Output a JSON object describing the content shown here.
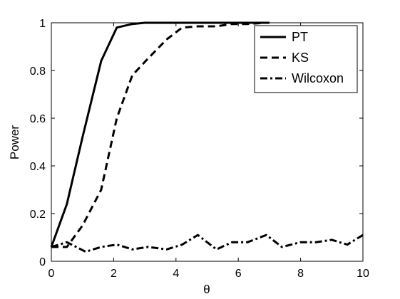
{
  "chart_data": {
    "type": "line",
    "xlabel": "θ",
    "ylabel": "Power",
    "xlim": [
      0,
      10
    ],
    "ylim": [
      0,
      1
    ],
    "xticks": [
      "0",
      "2",
      "4",
      "6",
      "8",
      "10"
    ],
    "yticks": [
      "0",
      "0.2",
      "0.4",
      "0.6",
      "0.8",
      "1"
    ],
    "grid": false,
    "legend_position": "top-right",
    "series": [
      {
        "name": "PT",
        "style": "solid",
        "x": [
          0,
          0.5,
          1,
          1.6,
          2.1,
          2.6,
          3,
          4,
          5,
          6,
          7
        ],
        "y": [
          0.06,
          0.24,
          0.52,
          0.84,
          0.98,
          0.995,
          1,
          1,
          1,
          1,
          1
        ]
      },
      {
        "name": "KS",
        "style": "dashed",
        "x": [
          0,
          0.5,
          1,
          1.6,
          2.1,
          2.6,
          3.1,
          3.7,
          4.2,
          4.7,
          5.3,
          5.8,
          6.3,
          6.9
        ],
        "y": [
          0.06,
          0.06,
          0.15,
          0.3,
          0.6,
          0.78,
          0.85,
          0.93,
          0.98,
          0.985,
          0.985,
          0.995,
          0.995,
          1
        ]
      },
      {
        "name": "Wilcoxon",
        "style": "dashdot",
        "x": [
          0,
          0.5,
          1.1,
          1.6,
          2.1,
          2.6,
          3.1,
          3.7,
          4.2,
          4.7,
          5.3,
          5.8,
          6.3,
          6.9,
          7.4,
          8,
          8.5,
          9,
          9.5,
          10
        ],
        "y": [
          0.06,
          0.08,
          0.04,
          0.06,
          0.07,
          0.05,
          0.06,
          0.05,
          0.07,
          0.11,
          0.05,
          0.08,
          0.08,
          0.11,
          0.06,
          0.08,
          0.08,
          0.09,
          0.07,
          0.11
        ]
      }
    ]
  }
}
